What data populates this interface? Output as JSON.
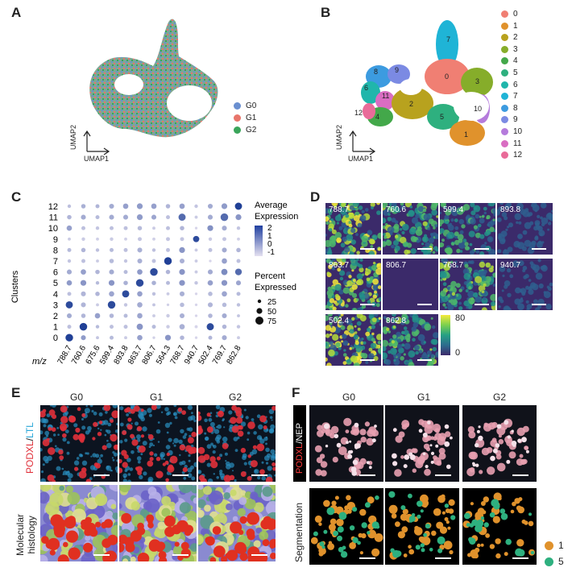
{
  "panels": {
    "a": "A",
    "b": "B",
    "c": "C",
    "d": "D",
    "e": "E",
    "f": "F"
  },
  "umap": {
    "x_label": "UMAP1",
    "y_label": "UMAP2"
  },
  "legend_a": [
    {
      "label": "G0",
      "color": "#6a8fd0"
    },
    {
      "label": "G1",
      "color": "#e8756b"
    },
    {
      "label": "G2",
      "color": "#3aa55a"
    }
  ],
  "legend_b": [
    {
      "label": "0",
      "color": "#f07f73"
    },
    {
      "label": "1",
      "color": "#e0922c"
    },
    {
      "label": "2",
      "color": "#b8a21e"
    },
    {
      "label": "3",
      "color": "#86ad2a"
    },
    {
      "label": "4",
      "color": "#43a84a"
    },
    {
      "label": "5",
      "color": "#2eb07f"
    },
    {
      "label": "6",
      "color": "#20b6ab"
    },
    {
      "label": "7",
      "color": "#1fb4d6"
    },
    {
      "label": "8",
      "color": "#3c9be0"
    },
    {
      "label": "9",
      "color": "#7b8ae3"
    },
    {
      "label": "10",
      "color": "#b57bdc"
    },
    {
      "label": "11",
      "color": "#d96dc2"
    },
    {
      "label": "12",
      "color": "#e96b99"
    }
  ],
  "umap_b_cluster_labels": [
    "7",
    "8",
    "9",
    "0",
    "3",
    "6",
    "11",
    "2",
    "10",
    "12",
    "4",
    "5",
    "1"
  ],
  "chart_data": {
    "type": "dotplot",
    "ylabel": "Clusters",
    "xlabel": "m/z",
    "clusters": [
      "0",
      "1",
      "2",
      "3",
      "4",
      "5",
      "6",
      "7",
      "8",
      "9",
      "10",
      "11",
      "12"
    ],
    "mz": [
      "788.7",
      "760.6",
      "675.6",
      "599.4",
      "893.8",
      "863.7",
      "806.7",
      "564.3",
      "768.7",
      "940.7",
      "502.4",
      "769.7",
      "862.8"
    ],
    "legend_expression_title": "Average Expression",
    "expression_ticks": [
      "2",
      "1",
      "0",
      "-1"
    ],
    "legend_percent_title": "Percent Expressed",
    "percent_ticks": [
      "25",
      "50",
      "75"
    ],
    "size": [
      [
        70,
        40,
        20,
        30,
        20,
        45,
        15,
        50,
        35,
        15,
        30,
        40,
        20
      ],
      [
        30,
        70,
        25,
        30,
        30,
        55,
        30,
        25,
        45,
        20,
        65,
        35,
        25
      ],
      [
        40,
        35,
        45,
        35,
        30,
        45,
        20,
        25,
        40,
        15,
        35,
        40,
        20
      ],
      [
        65,
        40,
        20,
        70,
        25,
        45,
        20,
        15,
        35,
        15,
        40,
        35,
        25
      ],
      [
        30,
        40,
        35,
        45,
        65,
        45,
        25,
        20,
        40,
        15,
        35,
        45,
        30
      ],
      [
        45,
        50,
        25,
        50,
        35,
        70,
        35,
        30,
        50,
        25,
        45,
        50,
        40
      ],
      [
        40,
        45,
        35,
        40,
        30,
        45,
        70,
        35,
        50,
        20,
        40,
        55,
        60
      ],
      [
        25,
        30,
        20,
        35,
        25,
        40,
        30,
        70,
        40,
        20,
        15,
        45,
        30
      ],
      [
        30,
        35,
        25,
        30,
        30,
        40,
        25,
        30,
        50,
        20,
        30,
        40,
        35
      ],
      [
        20,
        25,
        20,
        25,
        20,
        30,
        20,
        30,
        30,
        55,
        25,
        30,
        20
      ],
      [
        45,
        30,
        25,
        30,
        30,
        35,
        20,
        30,
        35,
        15,
        50,
        40,
        25
      ],
      [
        35,
        40,
        30,
        40,
        40,
        50,
        40,
        30,
        65,
        20,
        40,
        70,
        50
      ],
      [
        25,
        35,
        30,
        40,
        45,
        50,
        45,
        35,
        45,
        25,
        40,
        50,
        65
      ]
    ],
    "expression": [
      [
        2.0,
        0.3,
        -0.5,
        -0.3,
        -0.6,
        0.2,
        -0.7,
        0.4,
        -0.2,
        -0.8,
        -0.2,
        0.0,
        -0.6
      ],
      [
        -0.4,
        2.0,
        -0.3,
        -0.4,
        -0.4,
        0.4,
        -0.3,
        -0.6,
        -0.1,
        -0.8,
        1.8,
        -0.2,
        -0.5
      ],
      [
        0.0,
        -0.2,
        0.2,
        -0.2,
        -0.3,
        0.1,
        -0.6,
        -0.6,
        -0.1,
        -0.8,
        -0.2,
        0.0,
        -0.5
      ],
      [
        1.8,
        -0.2,
        -0.6,
        1.8,
        -0.5,
        0.0,
        -0.5,
        -0.7,
        -0.3,
        -0.8,
        -0.2,
        -0.3,
        -0.4
      ],
      [
        -0.4,
        -0.2,
        -0.2,
        0.1,
        1.8,
        0.2,
        -0.4,
        -0.6,
        -0.1,
        -0.8,
        -0.3,
        0.1,
        -0.3
      ],
      [
        0.3,
        0.4,
        -0.3,
        0.4,
        -0.1,
        1.8,
        -0.1,
        -0.3,
        0.4,
        -0.5,
        0.2,
        0.4,
        0.1
      ],
      [
        0.0,
        0.2,
        -0.2,
        0.0,
        -0.3,
        0.3,
        1.8,
        -0.2,
        0.4,
        -0.6,
        0.0,
        0.6,
        1.2
      ],
      [
        -0.5,
        -0.4,
        -0.6,
        -0.3,
        -0.5,
        -0.1,
        -0.4,
        2.0,
        -0.1,
        -0.6,
        -0.8,
        0.2,
        -0.4
      ],
      [
        -0.3,
        -0.2,
        -0.4,
        -0.3,
        -0.4,
        -0.1,
        -0.4,
        -0.4,
        0.4,
        -0.6,
        -0.4,
        0.0,
        -0.2
      ],
      [
        -0.6,
        -0.6,
        -0.7,
        -0.6,
        -0.7,
        -0.5,
        -0.7,
        -0.5,
        -0.5,
        1.8,
        -0.6,
        -0.5,
        -0.7
      ],
      [
        0.2,
        -0.4,
        -0.5,
        -0.4,
        -0.4,
        -0.3,
        -0.6,
        -0.4,
        -0.2,
        -0.8,
        0.5,
        0.0,
        -0.5
      ],
      [
        -0.2,
        0.0,
        -0.3,
        0.0,
        0.0,
        0.3,
        0.1,
        -0.4,
        1.2,
        -0.6,
        0.0,
        1.2,
        0.4
      ],
      [
        -0.4,
        -0.1,
        -0.2,
        0.0,
        0.2,
        0.3,
        0.2,
        -0.2,
        0.2,
        -0.5,
        0.0,
        0.3,
        2.0
      ]
    ]
  },
  "ion_images": {
    "tiles": [
      "788.7",
      "760.6",
      "599.4",
      "893.8",
      "863.7",
      "806.7",
      "768.7",
      "940.7",
      "502.4",
      "862.8"
    ],
    "colorbar_ticks": [
      "80",
      "0"
    ]
  },
  "panel_e": {
    "columns": [
      "G0",
      "G1",
      "G2"
    ],
    "row1_label_red": "PODXL",
    "row1_label_sep": "/",
    "row1_label_cyan": "LTL",
    "row2_label_line1": "Molecular",
    "row2_label_line2": "histology"
  },
  "panel_f": {
    "columns": [
      "G0",
      "G1",
      "G2"
    ],
    "row1_label_red": "PODXL",
    "row1_label_sep": "/",
    "row1_label_white": "NEP",
    "row2_label": "Segmentation",
    "legend": [
      {
        "label": "1",
        "color": "#e0922c"
      },
      {
        "label": "5",
        "color": "#2eb07f"
      }
    ]
  }
}
